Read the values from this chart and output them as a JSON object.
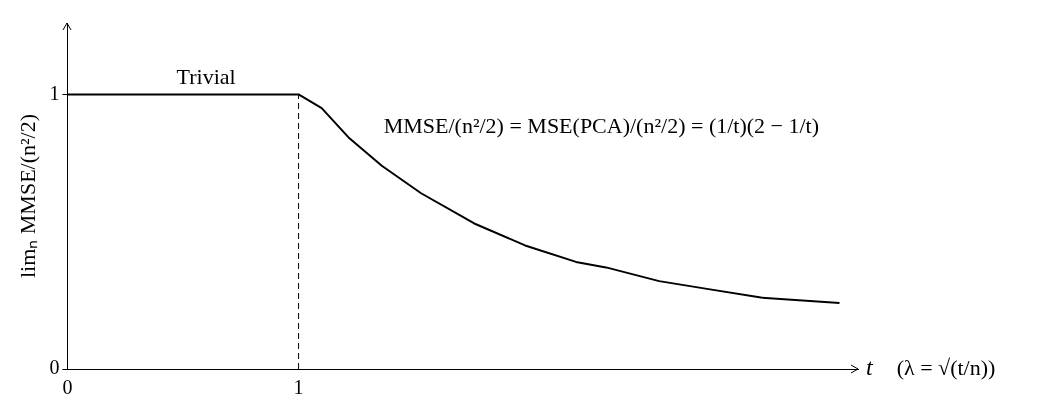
{
  "chart_data": {
    "type": "line",
    "xlabel": "t",
    "ylabel": "limₙ MMSE/(n²/2)",
    "x": [
      0,
      1,
      1.1,
      1.22,
      1.36,
      1.53,
      1.76,
      1.98,
      2.2,
      2.33,
      2.56,
      2.78,
      3.0,
      3.34
    ],
    "series": [
      {
        "color": "#000000",
        "values": [
          1,
          1,
          0.95,
          0.84,
          0.74,
          0.64,
          0.53,
          0.45,
          0.39,
          0.37,
          0.32,
          0.29,
          0.26,
          0.24
        ]
      }
    ],
    "xlim": [
      0,
      3.42
    ],
    "ylim": [
      0,
      1.26
    ],
    "xticks": [
      0,
      1
    ],
    "yticks": [
      0,
      1
    ],
    "grid": false,
    "legend": false,
    "marker": "none",
    "line_style": "solid",
    "ref_lines": [
      {
        "axis": "x",
        "value": 1,
        "line_style": "dashed",
        "color": "#000000"
      }
    ],
    "annotations": [
      {
        "text": "Trivial",
        "x": 0.6,
        "y": 1
      },
      "MMSE/(n²/2) = MSE(PCA)/(n²/2) = (1/t)(2 − 1/t)",
      "(λ = √(t/n))"
    ]
  }
}
